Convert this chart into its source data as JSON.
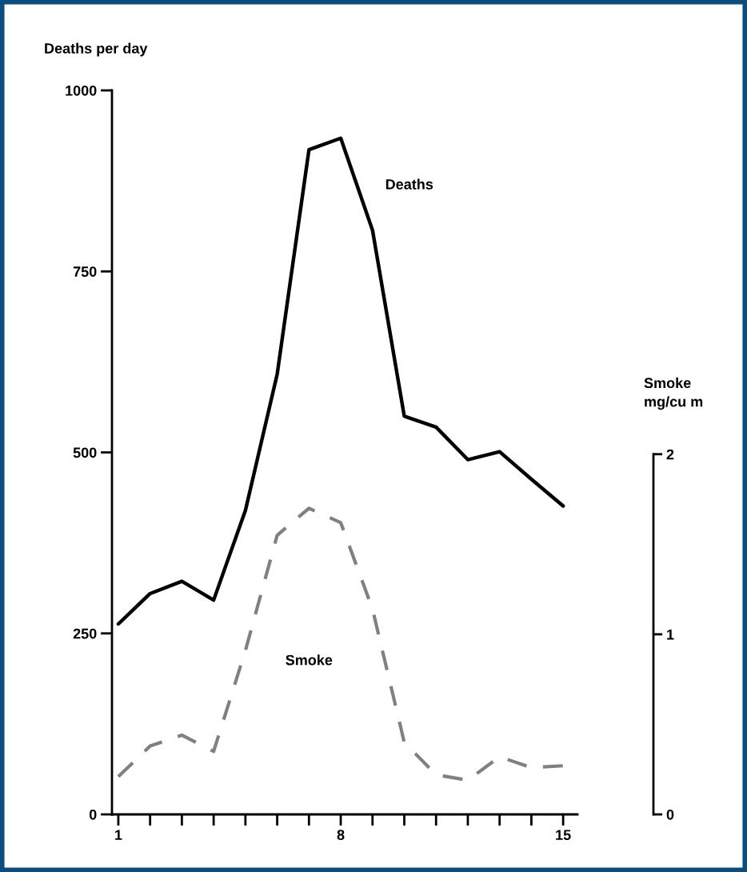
{
  "chart_data": {
    "type": "line",
    "ylabel": "Deaths per day",
    "y2label": "Smoke\nmg/cu m",
    "x": [
      1,
      2,
      3,
      4,
      5,
      6,
      7,
      8,
      9,
      10,
      11,
      12,
      13,
      14,
      15
    ],
    "xlim": [
      0.8,
      15.45
    ],
    "xticks": [
      {
        "value": 1,
        "label": "1"
      },
      {
        "value": 2,
        "label": null
      },
      {
        "value": 3,
        "label": null
      },
      {
        "value": 4,
        "label": null
      },
      {
        "value": 5,
        "label": null
      },
      {
        "value": 6,
        "label": null
      },
      {
        "value": 7,
        "label": null
      },
      {
        "value": 8,
        "label": "8"
      },
      {
        "value": 9,
        "label": null
      },
      {
        "value": 10,
        "label": null
      },
      {
        "value": 11,
        "label": null
      },
      {
        "value": 12,
        "label": null
      },
      {
        "value": 13,
        "label": null
      },
      {
        "value": 14,
        "label": null
      },
      {
        "value": 15,
        "label": "15"
      }
    ],
    "ylim": [
      0,
      1000
    ],
    "yticks": [
      0,
      250,
      500,
      750,
      1000
    ],
    "y2lim": [
      0,
      4.02
    ],
    "y2ticks": [
      0,
      1,
      2
    ],
    "grid": false,
    "legend": false,
    "marker": "none",
    "series": [
      {
        "name": "Deaths",
        "color": "#000000",
        "line_style": "solid",
        "values": [
          263,
          305,
          322,
          296,
          420,
          608,
          918,
          934,
          807,
          550,
          535,
          490,
          501,
          463,
          426
        ]
      },
      {
        "name": "Smoke",
        "color": "#808080",
        "line_style": "dashed",
        "axis": "y2",
        "values": [
          0.21,
          0.38,
          0.44,
          0.35,
          0.91,
          1.55,
          1.7,
          1.62,
          1.14,
          0.4,
          0.22,
          0.19,
          0.32,
          0.26,
          0.27
        ]
      }
    ]
  }
}
